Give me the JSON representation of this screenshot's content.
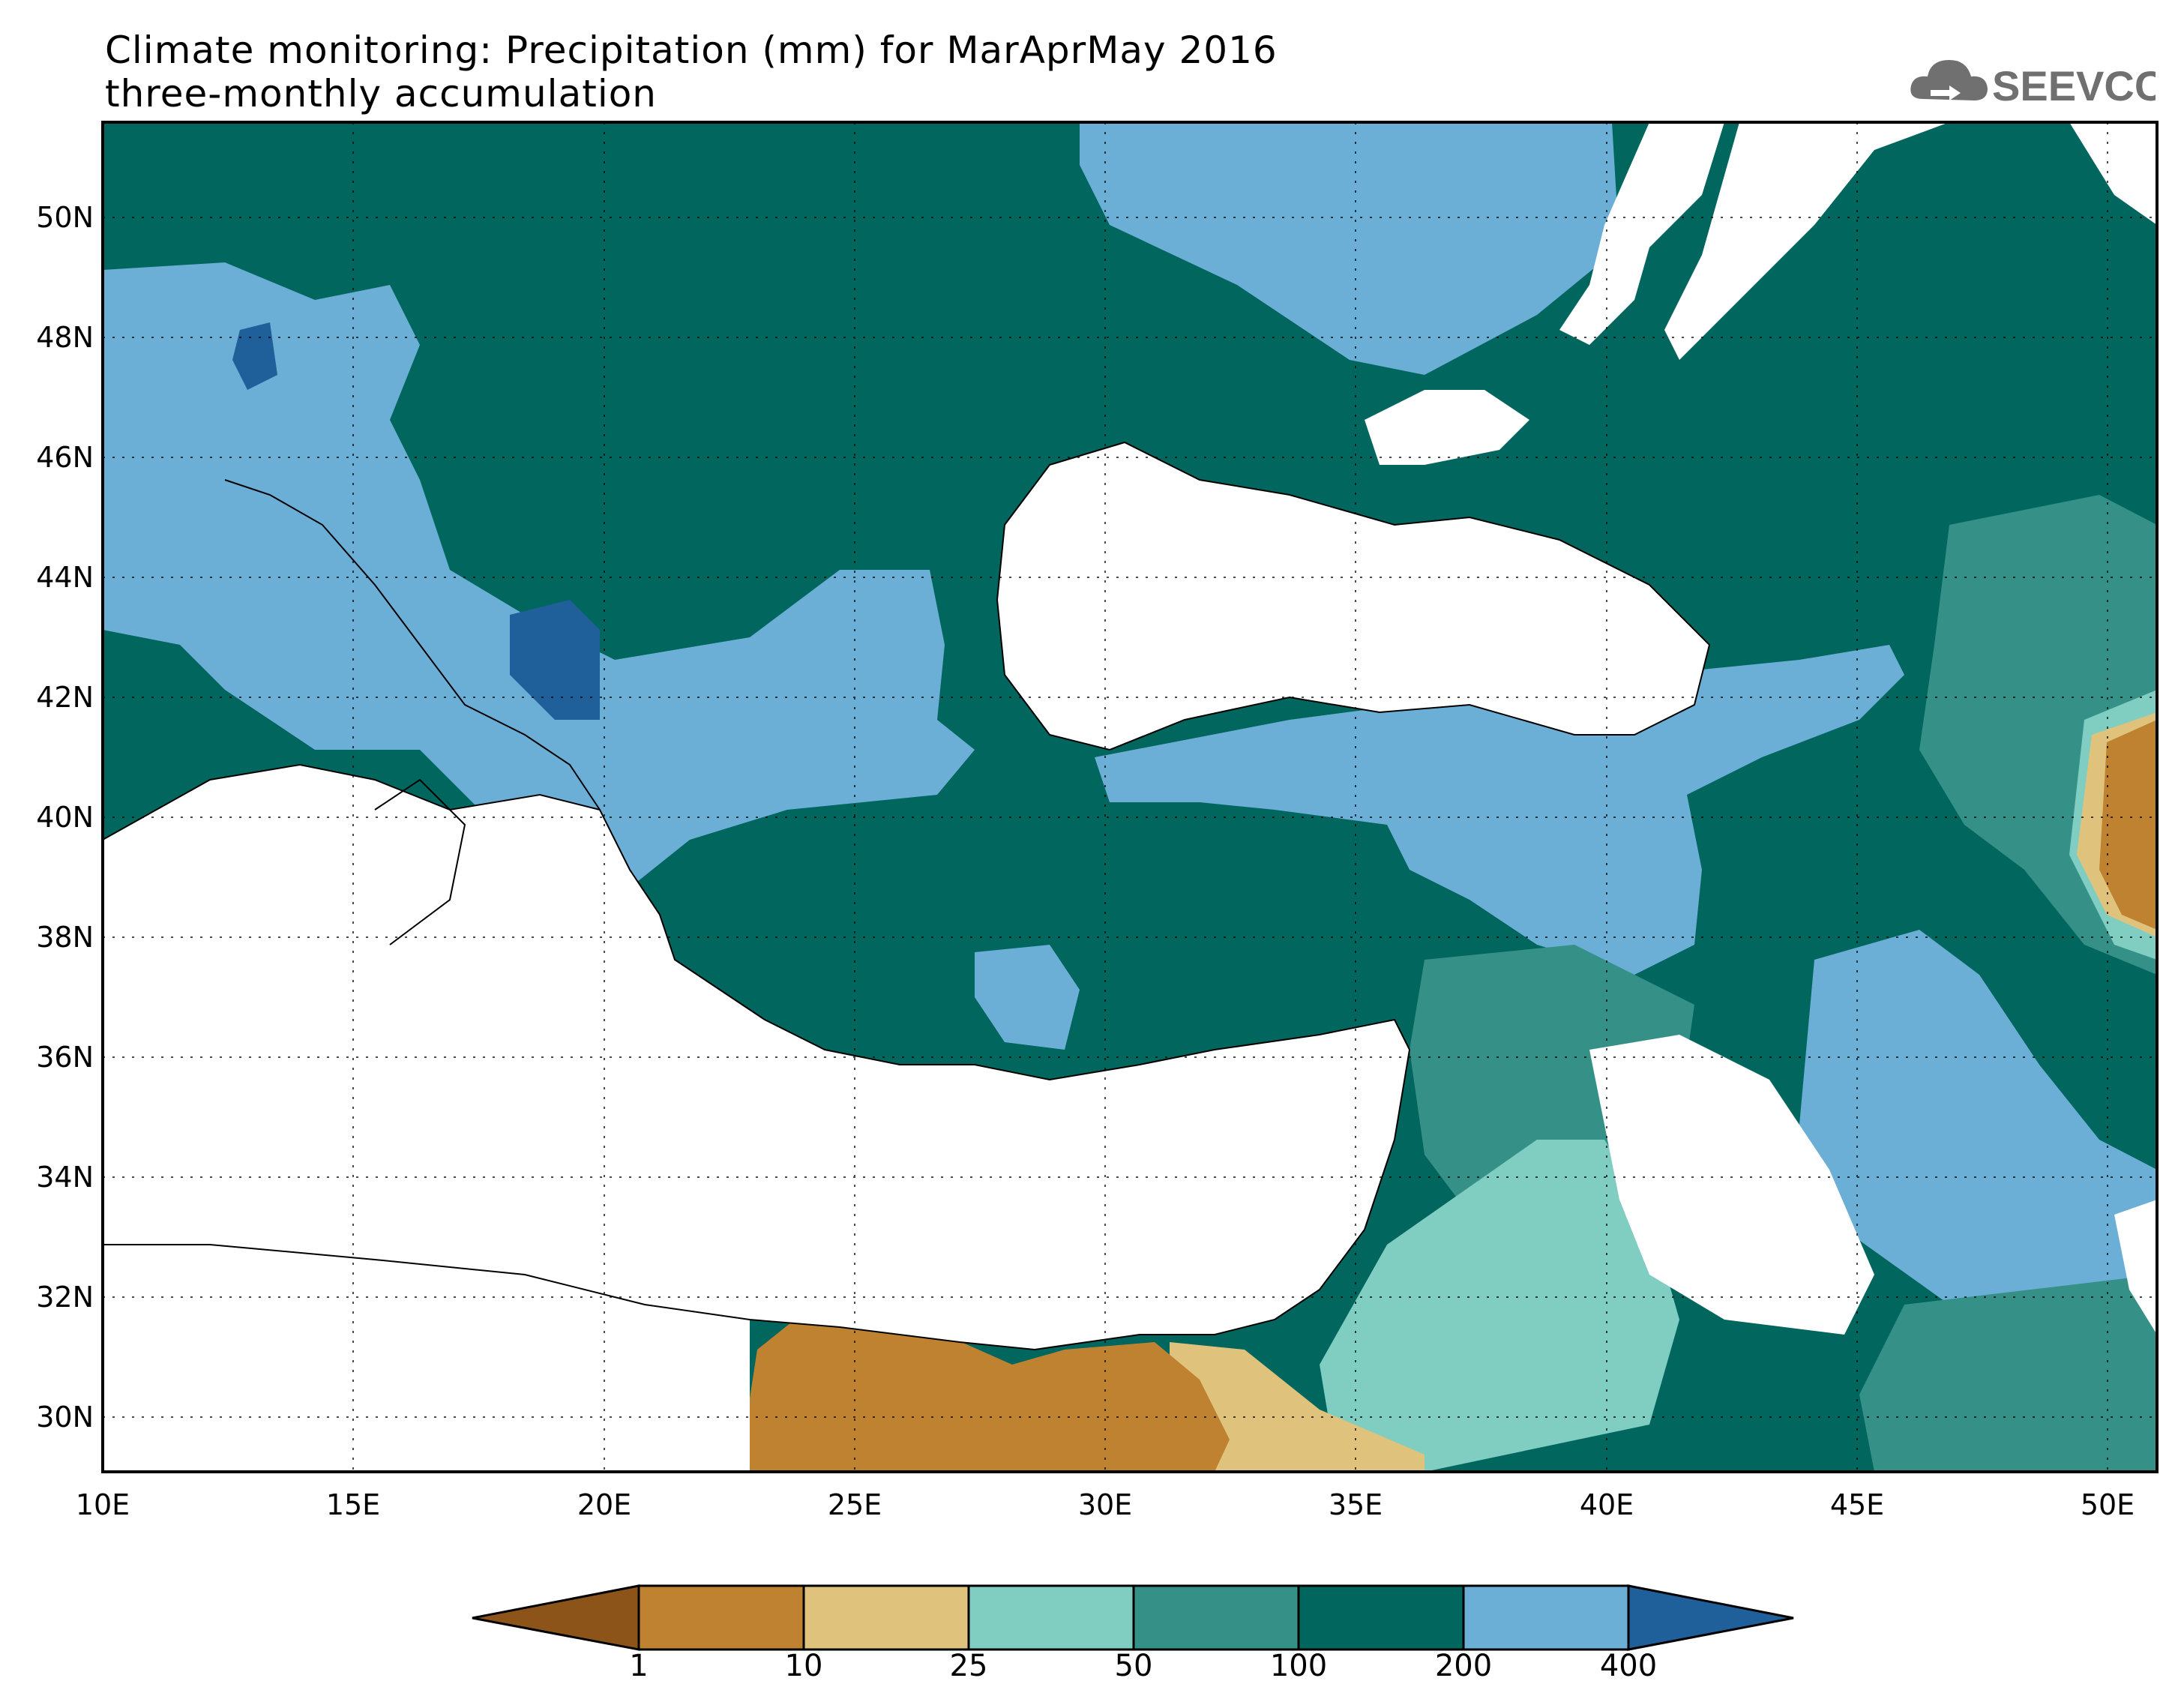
{
  "title": {
    "line1": "Climate monitoring: Precipitation (mm) for MarAprMay 2016",
    "line2": "three-monthly accumulation"
  },
  "logo": {
    "text": "SEEVCCC",
    "icon": "cloud-icon"
  },
  "map": {
    "lon_range": [
      10,
      51
    ],
    "lat_range": [
      29,
      51.5
    ],
    "x_ticks": [
      "10E",
      "15E",
      "20E",
      "25E",
      "30E",
      "35E",
      "40E",
      "45E",
      "50E"
    ],
    "y_ticks": [
      "30N",
      "32N",
      "34N",
      "36N",
      "38N",
      "40N",
      "42N",
      "44N",
      "46N",
      "48N",
      "50N"
    ],
    "gridlines": "dotted"
  },
  "colorbar": {
    "thresholds": [
      "1",
      "10",
      "25",
      "50",
      "100",
      "200",
      "400"
    ],
    "colors": [
      "#8c5419",
      "#bf8230",
      "#dfc27c",
      "#80cdc1",
      "#359188",
      "#01665e",
      "#6baed6",
      "#1f5f9a"
    ]
  }
}
